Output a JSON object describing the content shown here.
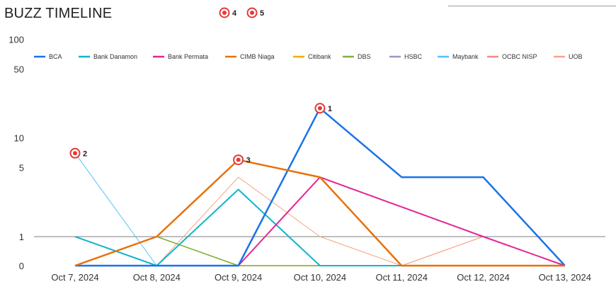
{
  "title": "BUZZ TIMELINE",
  "chart_data": {
    "type": "line",
    "title": "BUZZ TIMELINE",
    "x": [
      "Oct 7, 2024",
      "Oct 8, 2024",
      "Oct 9, 2024",
      "Oct 10, 2024",
      "Oct 11, 2024",
      "Oct 12, 2024",
      "Oct 13, 2024"
    ],
    "y_scale": "log1p",
    "y_ticks": [
      0,
      1,
      5,
      10,
      50,
      100
    ],
    "y_tick_labels": [
      "0",
      "1",
      "5",
      "10",
      "50",
      "100"
    ],
    "ylim": [
      0,
      100
    ],
    "reference_line_at": 1,
    "grid": false,
    "legend_position": "top",
    "series": [
      {
        "name": "BCA",
        "color": "#1a73e8",
        "width": 2.5,
        "values": [
          0,
          0,
          0,
          20,
          4,
          4,
          0
        ]
      },
      {
        "name": "Bank Danamon",
        "color": "#12b5cb",
        "width": 2,
        "values": [
          1,
          0,
          3,
          0,
          0,
          0,
          0
        ]
      },
      {
        "name": "Bank Permata",
        "color": "#e52592",
        "width": 2,
        "values": [
          0,
          0,
          0,
          4,
          2,
          1,
          0
        ]
      },
      {
        "name": "CIMB Niaga",
        "color": "#e8710a",
        "width": 2.5,
        "values": [
          0,
          1,
          6,
          4,
          0,
          0,
          0
        ]
      },
      {
        "name": "Citibank",
        "color": "#f9ab00",
        "width": 1.5,
        "values": [
          0,
          1,
          0,
          0,
          0,
          0,
          0
        ]
      },
      {
        "name": "DBS",
        "color": "#7cb342",
        "width": 1.5,
        "values": [
          0,
          1,
          0,
          0,
          0,
          0,
          0
        ]
      },
      {
        "name": "HSBC",
        "color": "#9e94c9",
        "width": 1,
        "values": [
          1,
          0,
          0,
          0,
          0,
          0,
          0
        ]
      },
      {
        "name": "Maybank",
        "color": "#4fc3f7",
        "width": 1,
        "values": [
          7,
          0,
          0,
          0,
          0,
          0,
          0
        ]
      },
      {
        "name": "OCBC NISP",
        "color": "#f28b82",
        "width": 1,
        "values": [
          0,
          0,
          0,
          0,
          0,
          1,
          0
        ]
      },
      {
        "name": "UOB",
        "color": "#f4a582",
        "width": 1,
        "values": [
          0,
          0,
          4,
          1,
          0,
          1,
          0
        ]
      }
    ],
    "annotations": [
      {
        "label": "1",
        "x": "Oct 10, 2024",
        "y": 20
      },
      {
        "label": "2",
        "x": "Oct 7, 2024",
        "y": 7
      },
      {
        "label": "3",
        "x": "Oct 9, 2024",
        "y": 6
      }
    ],
    "header_markers": [
      "4",
      "5"
    ]
  }
}
